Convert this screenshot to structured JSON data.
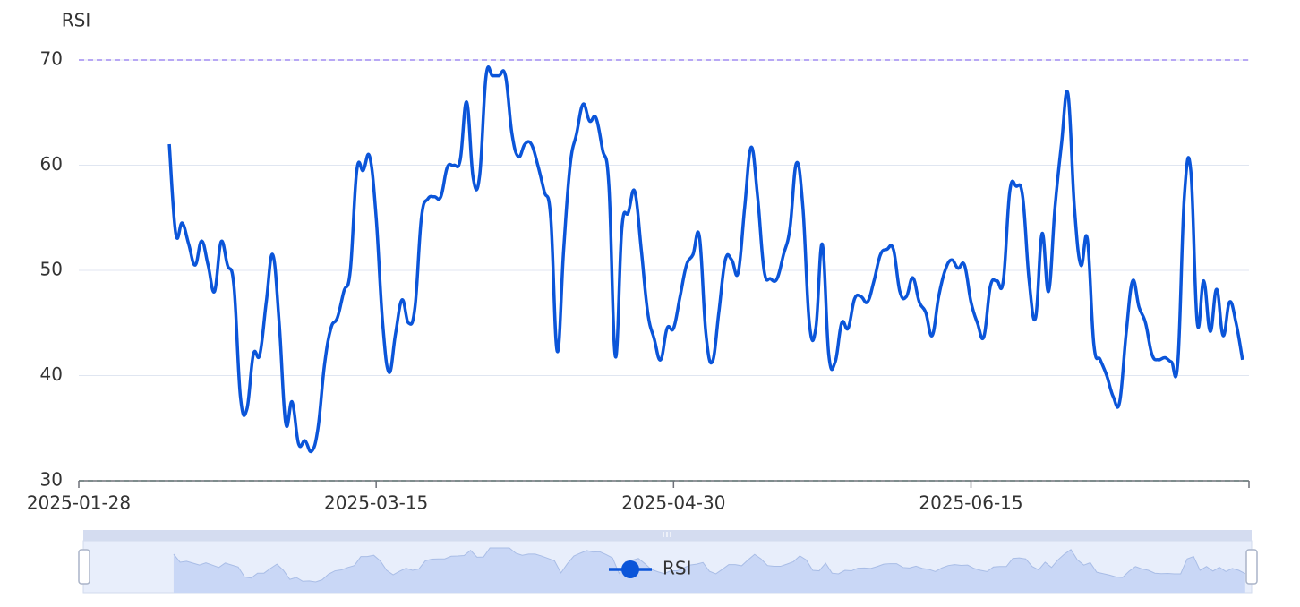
{
  "chart_data": {
    "type": "line",
    "y_axis_label": "RSI",
    "x": [
      "2025-02-11",
      "2025-02-12",
      "2025-02-13",
      "2025-02-14",
      "2025-02-15",
      "2025-02-16",
      "2025-02-17",
      "2025-02-18",
      "2025-02-19",
      "2025-02-20",
      "2025-02-21",
      "2025-02-22",
      "2025-02-23",
      "2025-02-24",
      "2025-02-25",
      "2025-02-26",
      "2025-02-27",
      "2025-02-28",
      "2025-03-01",
      "2025-03-02",
      "2025-03-03",
      "2025-03-04",
      "2025-03-05",
      "2025-03-06",
      "2025-03-07",
      "2025-03-08",
      "2025-03-09",
      "2025-03-10",
      "2025-03-11",
      "2025-03-12",
      "2025-03-13",
      "2025-03-14",
      "2025-03-15",
      "2025-03-16",
      "2025-03-17",
      "2025-03-18",
      "2025-03-19",
      "2025-03-20",
      "2025-03-21",
      "2025-03-22",
      "2025-03-23",
      "2025-03-24",
      "2025-03-25",
      "2025-03-26",
      "2025-03-27",
      "2025-03-28",
      "2025-03-29",
      "2025-03-30",
      "2025-03-31",
      "2025-04-01",
      "2025-04-02",
      "2025-04-03",
      "2025-04-04",
      "2025-04-05",
      "2025-04-06",
      "2025-04-07",
      "2025-04-08",
      "2025-04-09",
      "2025-04-10",
      "2025-04-11",
      "2025-04-12",
      "2025-04-13",
      "2025-04-14",
      "2025-04-15",
      "2025-04-16",
      "2025-04-17",
      "2025-04-18",
      "2025-04-19",
      "2025-04-20",
      "2025-04-21",
      "2025-04-22",
      "2025-04-23",
      "2025-04-24",
      "2025-04-25",
      "2025-04-26",
      "2025-04-27",
      "2025-04-28",
      "2025-04-29",
      "2025-04-30",
      "2025-05-01",
      "2025-05-02",
      "2025-05-03",
      "2025-05-04",
      "2025-05-05",
      "2025-05-06",
      "2025-05-07",
      "2025-05-08",
      "2025-05-09",
      "2025-05-10",
      "2025-05-11",
      "2025-05-12",
      "2025-05-13",
      "2025-05-14",
      "2025-05-15",
      "2025-05-16",
      "2025-05-17",
      "2025-05-18",
      "2025-05-19",
      "2025-05-20",
      "2025-05-21",
      "2025-05-22",
      "2025-05-23",
      "2025-05-24",
      "2025-05-25",
      "2025-05-26",
      "2025-05-27",
      "2025-05-28",
      "2025-05-29",
      "2025-05-30",
      "2025-05-31",
      "2025-06-01",
      "2025-06-02",
      "2025-06-03",
      "2025-06-04",
      "2025-06-05",
      "2025-06-06",
      "2025-06-07",
      "2025-06-08",
      "2025-06-09",
      "2025-06-10",
      "2025-06-11",
      "2025-06-12",
      "2025-06-13",
      "2025-06-14",
      "2025-06-15",
      "2025-06-16",
      "2025-06-17",
      "2025-06-18",
      "2025-06-19",
      "2025-06-20",
      "2025-06-21",
      "2025-06-22",
      "2025-06-23",
      "2025-06-24",
      "2025-06-25",
      "2025-06-26",
      "2025-06-27",
      "2025-06-28",
      "2025-06-29",
      "2025-06-30",
      "2025-07-01",
      "2025-07-02",
      "2025-07-03",
      "2025-07-04",
      "2025-07-05",
      "2025-07-06",
      "2025-07-07",
      "2025-07-08",
      "2025-07-09",
      "2025-07-10",
      "2025-07-11",
      "2025-07-12",
      "2025-07-13",
      "2025-07-14",
      "2025-07-15",
      "2025-07-16",
      "2025-07-17",
      "2025-07-18",
      "2025-07-19",
      "2025-07-20",
      "2025-07-21",
      "2025-07-22",
      "2025-07-23",
      "2025-07-24",
      "2025-07-25",
      "2025-07-26",
      "2025-07-27"
    ],
    "series": [
      {
        "name": "RSI",
        "color": "#0b55d9",
        "values": [
          62,
          53.5,
          54.5,
          52.5,
          50.5,
          52.8,
          50.5,
          48,
          52.7,
          50.5,
          48.5,
          38,
          36.8,
          42,
          42,
          47,
          51.5,
          45,
          35.5,
          37.5,
          33.5,
          33.8,
          32.8,
          35,
          41,
          44.5,
          45.5,
          48,
          50,
          59.5,
          59.5,
          60.8,
          55,
          45,
          40.3,
          44,
          47.2,
          45,
          46.5,
          55,
          56.8,
          57,
          57,
          59.8,
          60,
          60.5,
          66,
          58.8,
          59,
          68.5,
          68.5,
          68.5,
          68.5,
          63,
          60.8,
          62,
          62,
          60,
          57.5,
          55,
          42.3,
          52,
          60,
          63,
          65.8,
          64.2,
          64.5,
          61.5,
          58,
          41.8,
          54,
          55.5,
          57.5,
          52,
          46,
          43.5,
          41.5,
          44.5,
          44.5,
          47.5,
          50.5,
          51.5,
          53.2,
          44,
          41.3,
          46,
          51,
          51,
          49.8,
          56,
          61.7,
          57,
          50,
          49.2,
          49.2,
          51.5,
          54,
          60.2,
          56,
          45,
          44.5,
          52.5,
          42,
          41.3,
          45,
          44.5,
          47.3,
          47.5,
          47,
          49,
          51.5,
          52,
          52,
          48,
          47.5,
          49.3,
          47,
          46,
          43.8,
          47.5,
          50,
          51,
          50.2,
          50.5,
          47,
          45,
          43.7,
          48.5,
          49,
          49,
          57.5,
          58,
          57,
          49,
          45.5,
          53.5,
          48,
          56,
          62,
          66.8,
          56,
          50.5,
          53,
          43,
          41.5,
          40,
          38,
          37.5,
          44,
          49,
          46.5,
          45,
          42,
          41.5,
          41.7,
          41.3,
          41.3,
          57,
          59.5,
          45,
          49,
          44.2,
          48.2,
          43.8,
          47,
          45,
          41.5
        ]
      }
    ],
    "xlim": [
      "2025-01-28",
      "2025-07-28"
    ],
    "xticks": [
      "2025-01-28",
      "2025-03-15",
      "2025-04-30",
      "2025-06-15"
    ],
    "ylim": [
      30,
      70
    ],
    "yticks": [
      30,
      40,
      50,
      60,
      70
    ],
    "grid": true,
    "reference_lines": [
      {
        "value": 70,
        "color": "#a08cf2"
      },
      {
        "value": 30,
        "color": "#5cbf8e"
      }
    ],
    "legend": "bottom"
  }
}
